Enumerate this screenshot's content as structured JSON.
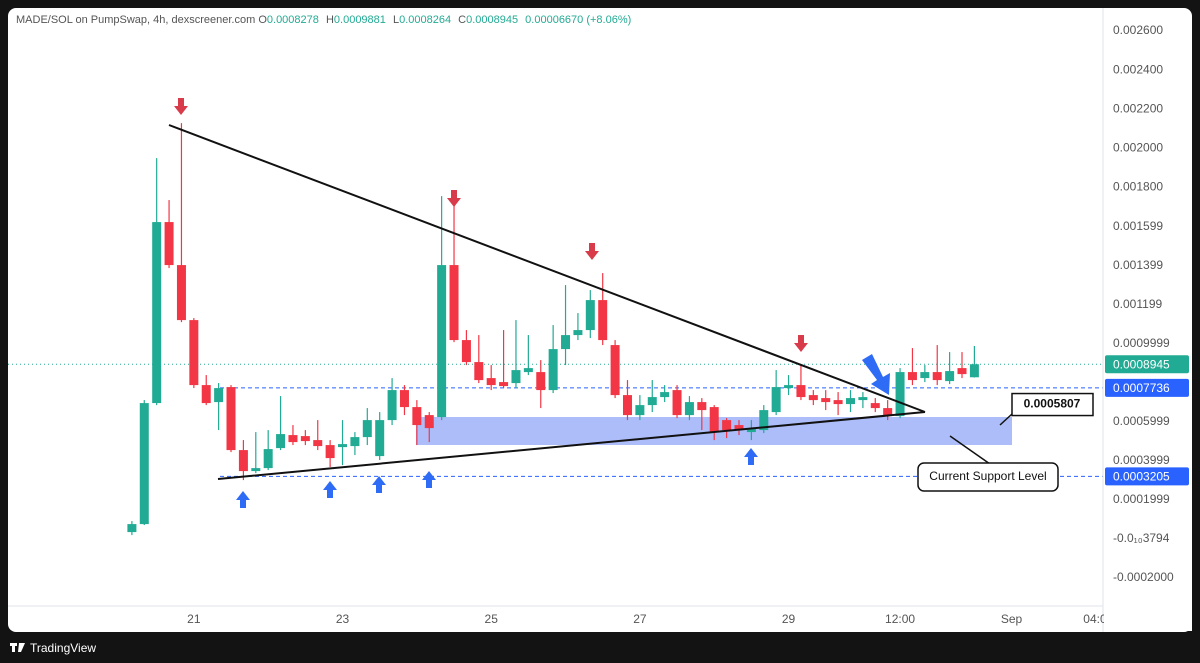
{
  "chart_data": {
    "type": "candlestick",
    "title": "MADE/SOL on PumpSwap, 4h, dexscreener.com",
    "ohlc_labels": [
      "O",
      "H",
      "L",
      "C"
    ],
    "change": "0.00006670 (+8.06%)",
    "source": "TradingView",
    "annotation": "Current Support Level",
    "up_color": "#22ab94",
    "down_color": "#f23645",
    "price_line_color": "#2962ff",
    "x": [
      20.1667,
      20.3333,
      20.5,
      20.6667,
      20.8333,
      21,
      21.1667,
      21.3333,
      21.5,
      21.6667,
      21.8333,
      22,
      22.1667,
      22.3333,
      22.5,
      22.6667,
      22.8333,
      23,
      23.1667,
      23.3333,
      23.5,
      23.6667,
      23.8333,
      24,
      24.1667,
      24.3333,
      24.5,
      24.6667,
      24.8333,
      25,
      25.1667,
      25.3333,
      25.5,
      25.6667,
      25.8333,
      26,
      26.1667,
      26.3333,
      26.5,
      26.6667,
      26.8333,
      27,
      27.1667,
      27.3333,
      27.5,
      27.6667,
      27.8333,
      28,
      28.1667,
      28.3333,
      28.5,
      28.6667,
      28.8333,
      29,
      29.1667,
      29.3333,
      29.5,
      29.6667,
      29.8333,
      30,
      30.1667,
      30.3333,
      30.5,
      30.6667,
      30.8333,
      31,
      31.1667,
      31.3333,
      31.5
    ],
    "open": [
      3.53e-05,
      7.63e-05,
      0.0006957,
      0.0016222,
      0.0014021,
      0.0011205,
      0.0007878,
      0.0007008,
      0.0007776,
      0.0004551,
      0.0003476,
      0.0003629,
      0.0004653,
      0.0005319,
      0.0005267,
      0.0005063,
      0.0004807,
      0.0004704,
      0.0004756,
      0.0005216,
      0.0004244,
      0.0006086,
      0.0007622,
      0.0006752,
      0.0006342,
      0.000624,
      0.0014021,
      0.0010182,
      0.0009056,
      0.0008236,
      0.0008032,
      0.0007981,
      0.0008544,
      0.0008544,
      0.0007622,
      0.0009721,
      0.0010438,
      0.0010694,
      0.0012229,
      0.0009926,
      0.0007366,
      0.0006342,
      0.0006854,
      0.0007264,
      0.0007622,
      0.0006342,
      0.0007008,
      0.0006752,
      0.0006086,
      0.0005831,
      0.0005472,
      0.0005575,
      0.0006496,
      0.0007725,
      0.0007878,
      0.0007366,
      0.0007213,
      0.000711,
      0.0006906,
      0.000711,
      0.0006957,
      0.0006701,
      0.0006291,
      0.0008544,
      0.0008237,
      0.0008544,
      0.0008083,
      0.0008748,
      0.0008278
    ],
    "high": [
      9.16e-05,
      0.000711,
      0.0019498,
      0.0017348,
      0.002129,
      0.0011308,
      0.000839,
      0.0007981,
      0.0007878,
      0.0005063,
      0.0005472,
      0.0005575,
      0.0007315,
      0.0005831,
      0.0005575,
      0.0006086,
      0.0005063,
      0.0006086,
      0.0005472,
      0.0006701,
      0.0006496,
      0.0008236,
      0.0007878,
      0.000711,
      0.0006496,
      0.0017553,
      0.0017092,
      0.0010694,
      0.0010438,
      0.0008902,
      0.0010694,
      0.0011205,
      0.0010438,
      0.0009158,
      0.001095,
      0.0012997,
      0.0011564,
      0.0012741,
      0.0013611,
      0.0010182,
      0.0008134,
      0.0007366,
      0.0008134,
      0.0007878,
      0.0007878,
      0.0007315,
      0.0007213,
      0.0006854,
      0.0006189,
      0.0006086,
      0.0006086,
      0.0006854,
      0.0008646,
      0.000839,
      0.0008902,
      0.0007622,
      0.0007622,
      0.000752,
      0.0007622,
      0.000752,
      0.0007213,
      0.000711,
      0.0008748,
      0.0009772,
      0.0008902,
      0.0009926,
      0.0009568,
      0.0009568,
      0.0009881
    ],
    "low": [
      2e-05,
      7.12e-05,
      0.0006854,
      0.0013867,
      0.0011103,
      0.0007725,
      0.0006854,
      0.0005575,
      0.0004448,
      0.0003015,
      0.0003373,
      0.0003527,
      0.0004551,
      0.0004807,
      0.0004807,
      0.0004551,
      0.0003681,
      0.0003783,
      0.0004295,
      0.0004807,
      0.0004039,
      0.0005831,
      0.0006342,
      0.0004807,
      0.000496,
      0.0006086,
      0.0010079,
      0.0008902,
      0.0007981,
      0.0007622,
      0.0007725,
      0.0007725,
      0.000839,
      0.0006701,
      0.0007469,
      0.0008902,
      0.0010182,
      0.0010284,
      0.0009926,
      0.0007213,
      0.0006086,
      0.0006086,
      0.0006496,
      0.0007008,
      0.0006189,
      0.0006086,
      0.0005575,
      0.0005063,
      0.0005165,
      0.0005319,
      0.0005063,
      0.0005421,
      0.0006342,
      0.0007366,
      0.000711,
      0.0006854,
      0.0006598,
      0.0006342,
      0.0006496,
      0.0006701,
      0.0006496,
      0.0006086,
      0.0006189,
      0.0007878,
      0.0008032,
      0.0007878,
      0.0007929,
      0.0008236,
      0.0008264
    ],
    "close": [
      7.63e-05,
      0.0006957,
      0.0016222,
      0.0014021,
      0.0011205,
      0.0007878,
      0.0006957,
      0.0007725,
      0.0004551,
      0.0003476,
      0.0003629,
      0.0004602,
      0.000537,
      0.000496,
      0.0005012,
      0.0004756,
      0.0004141,
      0.0004858,
      0.0005216,
      0.0006086,
      0.0006086,
      0.0007622,
      0.0006752,
      0.0005831,
      0.0005677,
      0.0014021,
      0.0010182,
      0.0009056,
      0.0008134,
      0.0007878,
      0.0007827,
      0.0008646,
      0.0008748,
      0.0007622,
      0.0009721,
      0.0010438,
      0.0010694,
      0.0012229,
      0.0010182,
      0.0007366,
      0.0006342,
      0.0006854,
      0.0007264,
      0.000752,
      0.0006342,
      0.0007008,
      0.0006598,
      0.0005472,
      0.0005575,
      0.0005575,
      0.0005677,
      0.0006598,
      0.0007776,
      0.0007878,
      0.0007264,
      0.000711,
      0.0007008,
      0.0006906,
      0.0007213,
      0.0007264,
      0.0006701,
      0.0006291,
      0.0008544,
      0.0008134,
      0.0008544,
      0.0008134,
      0.0008595,
      0.0008441,
      0.0008945
    ],
    "price_lines": [
      0.0007736,
      0.0003205
    ],
    "marked_price": 0.0005807,
    "xlim": [
      18.5,
      33.23
    ],
    "xticks": [
      21,
      23,
      25,
      27,
      29,
      {
        "value": 30.5,
        "label": "12:00"
      },
      {
        "value": 32,
        "label": "Sep"
      },
      {
        "value": 33.1667,
        "label": "04:00"
      }
    ],
    "ylim": [
      -0.000343,
      0.002718
    ],
    "yticks": [
      {
        "value": 0.0026,
        "label": "0.002600"
      },
      {
        "value": 0.0024,
        "label": "0.002400"
      },
      {
        "value": 0.0022,
        "label": "0.002200"
      },
      {
        "value": 0.002,
        "label": "0.002000"
      },
      {
        "value": 0.0018,
        "label": "0.001800"
      },
      {
        "value": 0.001599,
        "label": "0.001599"
      },
      {
        "value": 0.001399,
        "label": "0.001399"
      },
      {
        "value": 0.001199,
        "label": "0.001199"
      },
      0.0009999,
      0.0005999,
      0.0003999,
      0.0001999,
      {
        "value": -3.794e-14,
        "label": "-0.0₁₀3794"
      },
      {
        "value": -0.0002,
        "label": "-0.0002000"
      }
    ]
  }
}
